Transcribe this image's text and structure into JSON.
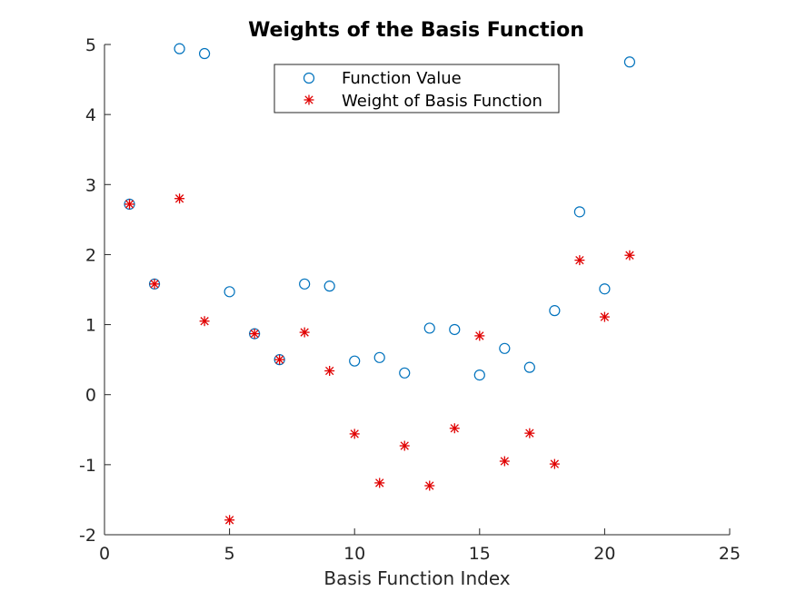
{
  "chart_data": {
    "type": "scatter",
    "title": "Weights of the Basis Function",
    "xlabel": "Basis Function Index",
    "ylabel": "",
    "xlim": [
      0,
      25
    ],
    "ylim": [
      -2,
      5
    ],
    "xticks": [
      0,
      5,
      10,
      15,
      20,
      25
    ],
    "yticks": [
      -2,
      -1,
      0,
      1,
      2,
      3,
      4,
      5
    ],
    "grid": false,
    "legend_position": "top-center",
    "series": [
      {
        "name": "Function Value",
        "marker": "circle",
        "color": "#0072BD",
        "points": [
          [
            1,
            2.72
          ],
          [
            2,
            1.58
          ],
          [
            3,
            4.94
          ],
          [
            4,
            4.87
          ],
          [
            5,
            1.47
          ],
          [
            6,
            0.87
          ],
          [
            7,
            0.5
          ],
          [
            8,
            1.58
          ],
          [
            9,
            1.55
          ],
          [
            10,
            0.48
          ],
          [
            11,
            0.53
          ],
          [
            12,
            0.31
          ],
          [
            13,
            0.95
          ],
          [
            14,
            0.93
          ],
          [
            15,
            0.28
          ],
          [
            16,
            0.66
          ],
          [
            17,
            0.39
          ],
          [
            18,
            1.2
          ],
          [
            19,
            2.61
          ],
          [
            20,
            1.51
          ],
          [
            21,
            4.75
          ]
        ]
      },
      {
        "name": "Weight of Basis Function",
        "marker": "asterisk",
        "color": "#E00000",
        "points": [
          [
            1,
            2.72
          ],
          [
            2,
            1.58
          ],
          [
            3,
            2.8
          ],
          [
            4,
            1.05
          ],
          [
            5,
            -1.79
          ],
          [
            6,
            0.87
          ],
          [
            7,
            0.5
          ],
          [
            8,
            0.89
          ],
          [
            9,
            0.34
          ],
          [
            10,
            -0.56
          ],
          [
            11,
            -1.26
          ],
          [
            12,
            -0.73
          ],
          [
            13,
            -1.3
          ],
          [
            14,
            -0.48
          ],
          [
            15,
            0.84
          ],
          [
            16,
            -0.95
          ],
          [
            17,
            -0.55
          ],
          [
            18,
            -0.99
          ],
          [
            19,
            1.92
          ],
          [
            20,
            1.11
          ],
          [
            21,
            1.99
          ]
        ]
      }
    ]
  }
}
